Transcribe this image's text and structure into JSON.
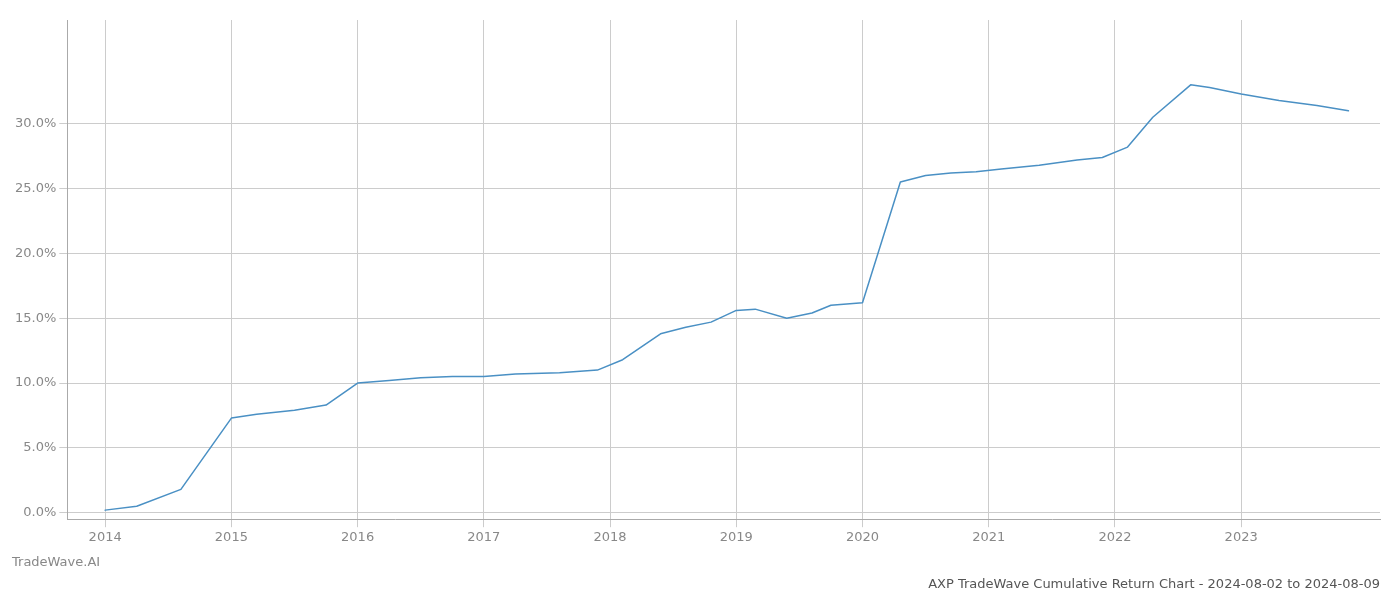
{
  "chart_data": {
    "type": "line",
    "title": "AXP TradeWave Cumulative Return Chart - 2024-08-02 to 2024-08-09",
    "annotations": [
      "TradeWave.AI"
    ],
    "x": [
      2014.0,
      2014.25,
      2014.6,
      2015.0,
      2015.2,
      2015.5,
      2015.75,
      2016.0,
      2016.25,
      2016.5,
      2016.75,
      2017.0,
      2017.25,
      2017.6,
      2017.9,
      2018.1,
      2018.4,
      2018.6,
      2018.8,
      2019.0,
      2019.15,
      2019.4,
      2019.6,
      2019.75,
      2020.0,
      2020.3,
      2020.5,
      2020.7,
      2020.9,
      2021.1,
      2021.4,
      2021.7,
      2021.9,
      2022.1,
      2022.3,
      2022.6,
      2022.75,
      2023.0,
      2023.3,
      2023.6,
      2023.85
    ],
    "values": [
      0.002,
      0.005,
      0.018,
      0.073,
      0.076,
      0.079,
      0.083,
      0.1,
      0.102,
      0.104,
      0.105,
      0.105,
      0.107,
      0.108,
      0.11,
      0.118,
      0.138,
      0.143,
      0.147,
      0.156,
      0.157,
      0.15,
      0.154,
      0.16,
      0.162,
      0.255,
      0.26,
      0.262,
      0.263,
      0.265,
      0.268,
      0.272,
      0.274,
      0.282,
      0.305,
      0.33,
      0.328,
      0.323,
      0.318,
      0.314,
      0.31
    ],
    "color": "#4a90c4",
    "xlim": [
      2013.7,
      2024.1
    ],
    "xticks": [
      2014,
      2015,
      2016,
      2017,
      2018,
      2019,
      2020,
      2021,
      2022,
      2023
    ],
    "ylim": [
      -0.005,
      0.38
    ],
    "yticks": [
      {
        "value": 0.0,
        "label": "0.0%"
      },
      {
        "value": 0.05,
        "label": "5.0%"
      },
      {
        "value": 0.1,
        "label": "10.0%"
      },
      {
        "value": 0.15,
        "label": "15.0%"
      },
      {
        "value": 0.2,
        "label": "20.0%"
      },
      {
        "value": 0.25,
        "label": "25.0%"
      },
      {
        "value": 0.3,
        "label": "30.0%"
      }
    ],
    "grid": true
  }
}
